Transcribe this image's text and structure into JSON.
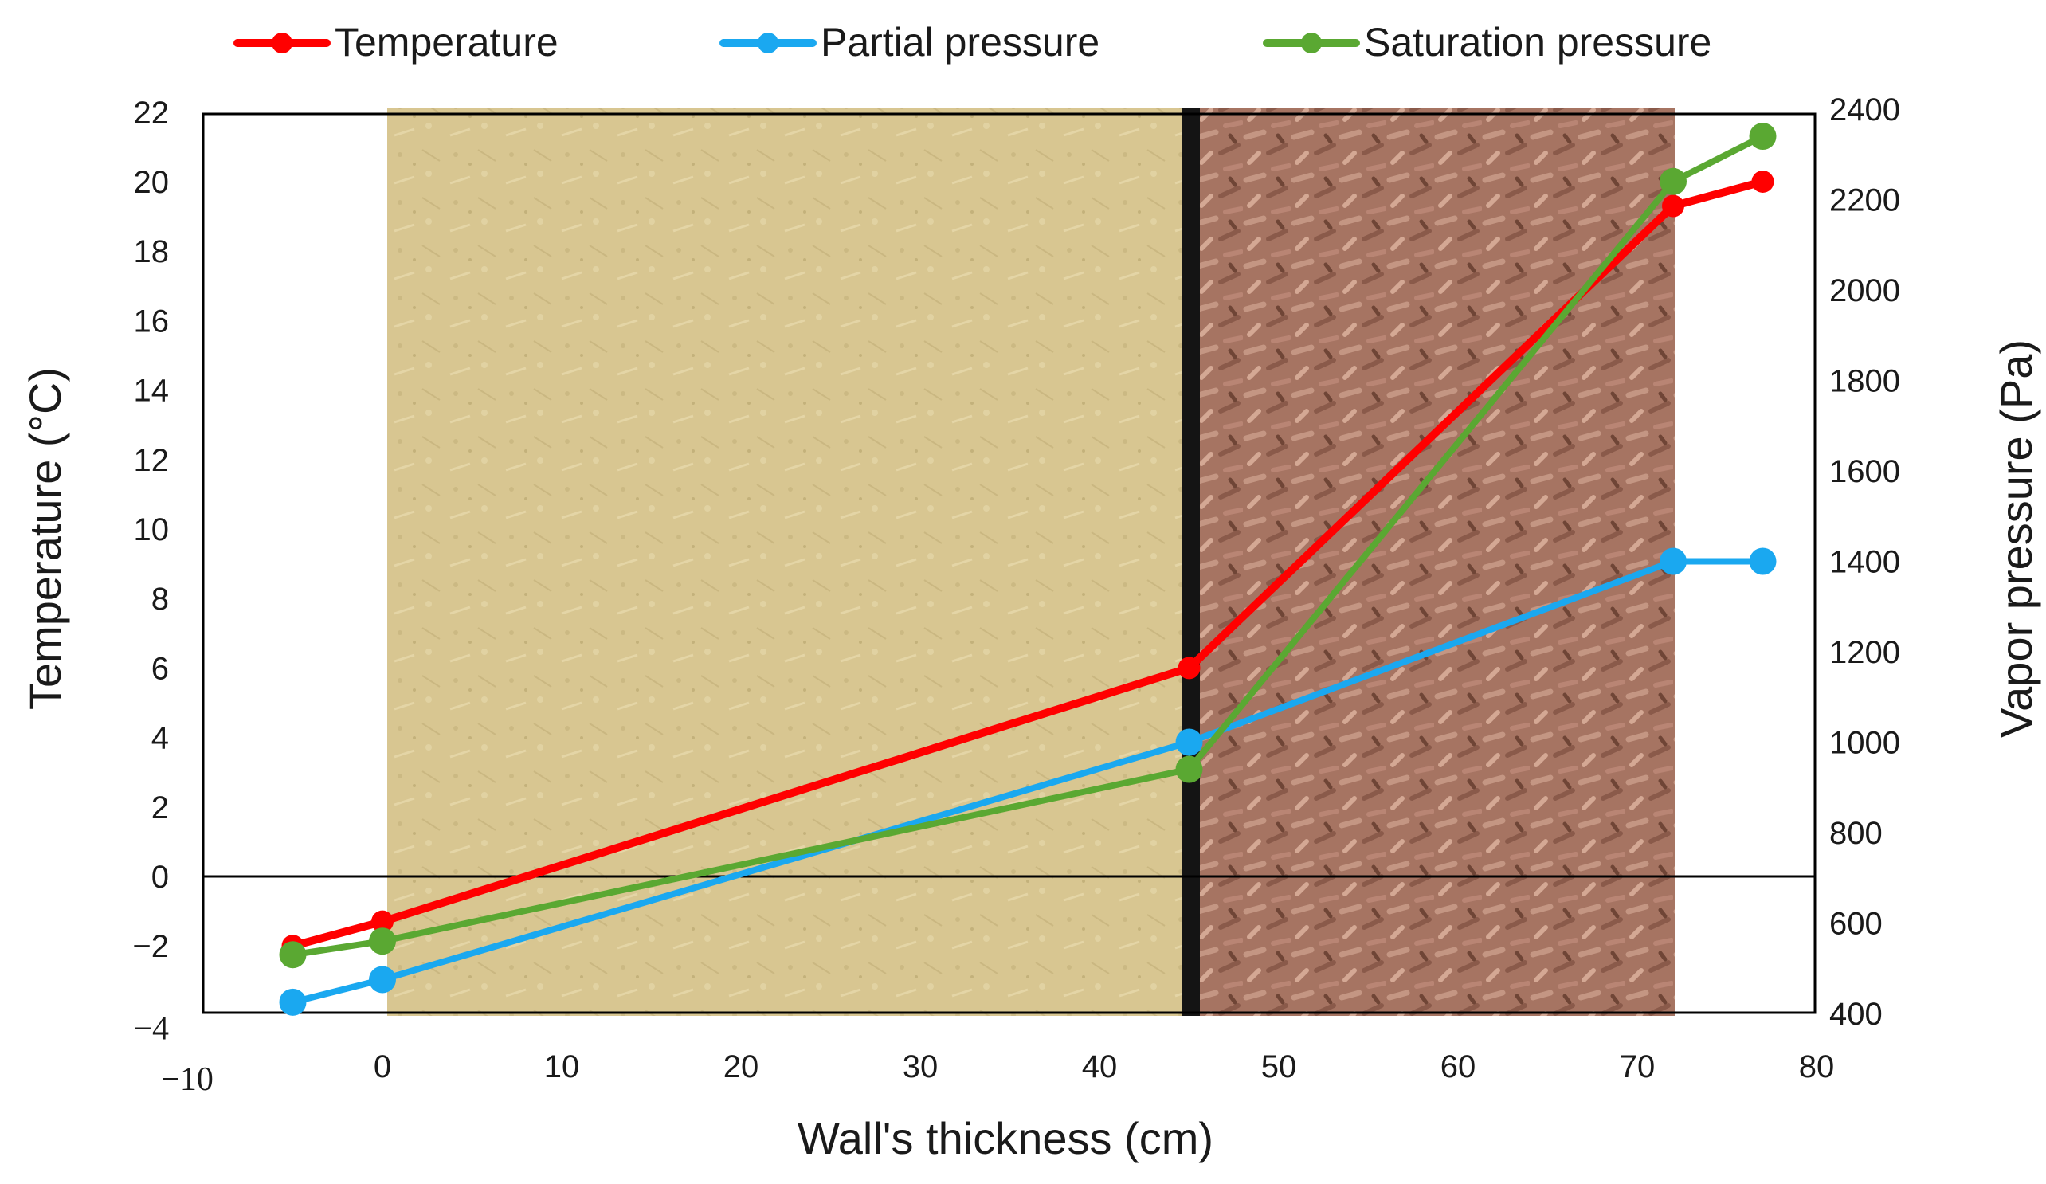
{
  "chart_data": {
    "type": "line",
    "title": "",
    "xlabel": "Wall's thickness (cm)",
    "ylabel_left": "Temperature (°C)",
    "ylabel_right": "Vapor pressure (Pa)",
    "xlim": [
      -10,
      80
    ],
    "ylim_left": [
      -4,
      22
    ],
    "ylim_right": [
      400,
      2400
    ],
    "x_ticks": [
      "−10",
      "0",
      "10",
      "20",
      "30",
      "40",
      "50",
      "60",
      "70",
      "80"
    ],
    "y_left_ticks": [
      "22",
      "20",
      "18",
      "16",
      "14",
      "12",
      "10",
      "8",
      "6",
      "4",
      "2",
      "0",
      "−2",
      "−4"
    ],
    "y_right_ticks": [
      "2400",
      "2200",
      "2000",
      "1800",
      "1600",
      "1400",
      "1200",
      "1000",
      "800",
      "600",
      "400"
    ],
    "grid": false,
    "legend_position": "top",
    "background": "photograph of wall cross-section: earth-straw plaster (left) and hemp/wood-chip layer (right)",
    "series": [
      {
        "name": "Temperature",
        "axis": "left",
        "color": "#ff0000",
        "x": [
          -5,
          0,
          45,
          72,
          77
        ],
        "y": [
          -2.0,
          -1.3,
          6.0,
          19.3,
          20.0
        ]
      },
      {
        "name": "Partial pressure",
        "axis": "right",
        "color": "#1aa8f0",
        "x": [
          -5,
          0,
          45,
          72,
          77
        ],
        "y": [
          425,
          475,
          1000,
          1400,
          1400
        ]
      },
      {
        "name": "Saturation pressure",
        "axis": "right",
        "color": "#5aa832",
        "x": [
          -5,
          0,
          45,
          72,
          77
        ],
        "y": [
          530,
          560,
          940,
          2240,
          2340
        ]
      }
    ]
  }
}
